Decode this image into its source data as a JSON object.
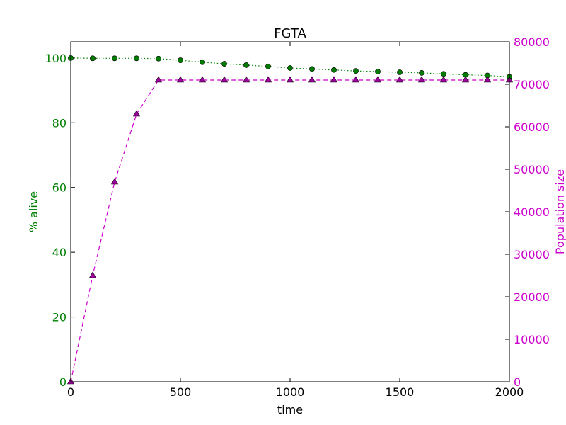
{
  "chart_data": {
    "type": "line",
    "title": "FGTA",
    "xlabel": "time",
    "ylabel_left": "% alive",
    "ylabel_right": "Population size",
    "xlim": [
      0,
      2000
    ],
    "ylim_left": [
      0,
      105
    ],
    "ylim_right": [
      0,
      80000
    ],
    "x_ticks": [
      0,
      500,
      1000,
      1500,
      2000
    ],
    "y_left_ticks": [
      0,
      20,
      40,
      60,
      80,
      100
    ],
    "y_right_ticks": [
      0,
      10000,
      20000,
      30000,
      40000,
      50000,
      60000,
      70000,
      80000
    ],
    "colors": {
      "left_axis": "#008000",
      "right_axis": "#cc00cc",
      "alive_line": "#008000",
      "alive_marker": "#007a00",
      "pop_line": "#cc00cc",
      "pop_marker": "#a000a0"
    },
    "series": [
      {
        "name": "% alive",
        "axis": "left",
        "marker": "circle",
        "linestyle": "dotted",
        "x": [
          0,
          100,
          200,
          300,
          400,
          500,
          600,
          700,
          800,
          900,
          1000,
          1100,
          1200,
          1300,
          1400,
          1500,
          1600,
          1700,
          1800,
          1900,
          2000
        ],
        "values": [
          100,
          99.9,
          99.9,
          99.9,
          99.8,
          99.3,
          98.7,
          98.2,
          97.8,
          97.4,
          96.9,
          96.6,
          96.3,
          96.0,
          95.8,
          95.6,
          95.4,
          95.1,
          94.8,
          94.6,
          94.2
        ]
      },
      {
        "name": "Population size",
        "axis": "right",
        "marker": "triangle",
        "linestyle": "dashed",
        "x": [
          0,
          100,
          200,
          300,
          400,
          500,
          600,
          700,
          800,
          900,
          1000,
          1100,
          1200,
          1300,
          1400,
          1500,
          1600,
          1700,
          1800,
          1900,
          2000
        ],
        "values": [
          0,
          25000,
          47000,
          63000,
          71000,
          71000,
          71000,
          71000,
          71000,
          71000,
          71000,
          71000,
          71000,
          71000,
          71000,
          71000,
          71000,
          71000,
          71000,
          71000,
          71000
        ]
      }
    ]
  }
}
